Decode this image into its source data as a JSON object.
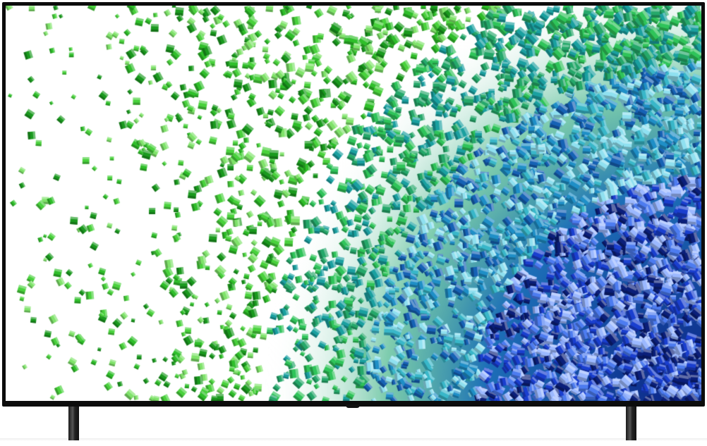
{
  "product": {
    "colors": {
      "bezel": "#0c0c0c",
      "screen_background": "#ffffff",
      "cube_green": "#2fbf2a",
      "cube_cyan": "#2ab0b8",
      "cube_blue": "#1f4fd6"
    }
  }
}
